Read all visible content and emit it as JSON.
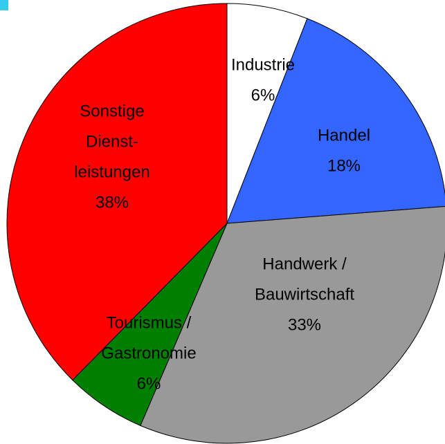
{
  "chart_data": {
    "type": "pie",
    "categories": [
      [
        "Industrie"
      ],
      [
        "Handel"
      ],
      [
        "Handwerk /",
        "Bauwirtschaft"
      ],
      [
        "Tourismus /",
        "Gastronomie"
      ],
      [
        "Sonstige",
        "Dienst-",
        "leistungen"
      ]
    ],
    "values": [
      6,
      18,
      33,
      6,
      38
    ],
    "value_labels": [
      "6%",
      "18%",
      "33%",
      "6%",
      "38%"
    ],
    "colors": [
      "#ffffff",
      "#3366ff",
      "#999999",
      "#007f00",
      "#ff0000"
    ]
  }
}
